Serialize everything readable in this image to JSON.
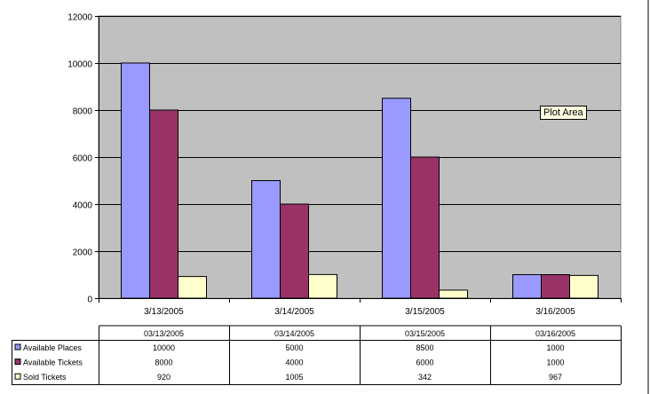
{
  "chart_data": {
    "type": "bar",
    "categories": [
      "3/13/2005",
      "3/14/2005",
      "3/15/2005",
      "3/16/2005"
    ],
    "series": [
      {
        "name": "Available Places",
        "values": [
          10000,
          5000,
          8500,
          1000
        ],
        "color": "#9999ff"
      },
      {
        "name": "Available Tickets",
        "values": [
          8000,
          4000,
          6000,
          1000
        ],
        "color": "#993366"
      },
      {
        "name": "Sold Tickets",
        "values": [
          920,
          1005,
          342,
          967
        ],
        "color": "#ffffcc"
      }
    ],
    "ylim": [
      0,
      12000
    ],
    "yticks": [
      "0",
      "2000",
      "4000",
      "6000",
      "8000",
      "10000",
      "12000"
    ],
    "grid": true,
    "plot_background": "#c0c0c0",
    "data_table": {
      "headers": [
        "03/13/2005",
        "03/14/2005",
        "03/15/2005",
        "03/16/2005"
      ],
      "rows": [
        {
          "label": "Available Places",
          "cells": [
            "10000",
            "5000",
            "8500",
            "1000"
          ]
        },
        {
          "label": "Available Tickets",
          "cells": [
            "8000",
            "4000",
            "6000",
            "1000"
          ]
        },
        {
          "label": "Sold Tickets",
          "cells": [
            "920",
            "1005",
            "342",
            "967"
          ]
        }
      ]
    }
  },
  "tooltip": {
    "text": "Plot Area"
  }
}
